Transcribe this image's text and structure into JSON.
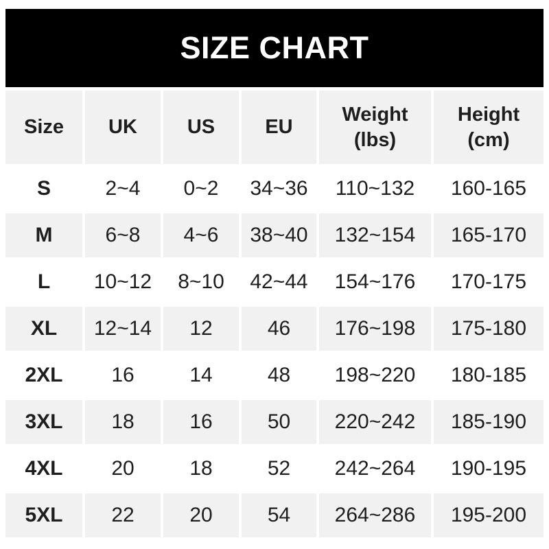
{
  "banner": {
    "title": "SIZE CHART"
  },
  "colors": {
    "banner_bg": "#000000",
    "banner_fg": "#ffffff",
    "row_alt_bg": "#f1f1f1",
    "row_bg": "#ffffff",
    "text": "#1e1e1e"
  },
  "chart_data": {
    "type": "table",
    "title": "SIZE CHART",
    "columns": [
      "Size",
      "UK",
      "US",
      "EU",
      "Weight (lbs)",
      "Height (cm)"
    ],
    "column_headers_display": [
      "Size",
      "UK",
      "US",
      "EU",
      "Weight\n(lbs)",
      "Height\n(cm)"
    ],
    "rows": [
      [
        "S",
        "2~4",
        "0~2",
        "34~36",
        "110~132",
        "160-165"
      ],
      [
        "M",
        "6~8",
        "4~6",
        "38~40",
        "132~154",
        "165-170"
      ],
      [
        "L",
        "10~12",
        "8~10",
        "42~44",
        "154~176",
        "170-175"
      ],
      [
        "XL",
        "12~14",
        "12",
        "46",
        "176~198",
        "175-180"
      ],
      [
        "2XL",
        "16",
        "14",
        "48",
        "198~220",
        "180-185"
      ],
      [
        "3XL",
        "18",
        "16",
        "50",
        "220~242",
        "185-190"
      ],
      [
        "4XL",
        "20",
        "18",
        "52",
        "242~264",
        "190-195"
      ],
      [
        "5XL",
        "22",
        "20",
        "54",
        "264~286",
        "195-200"
      ]
    ]
  }
}
